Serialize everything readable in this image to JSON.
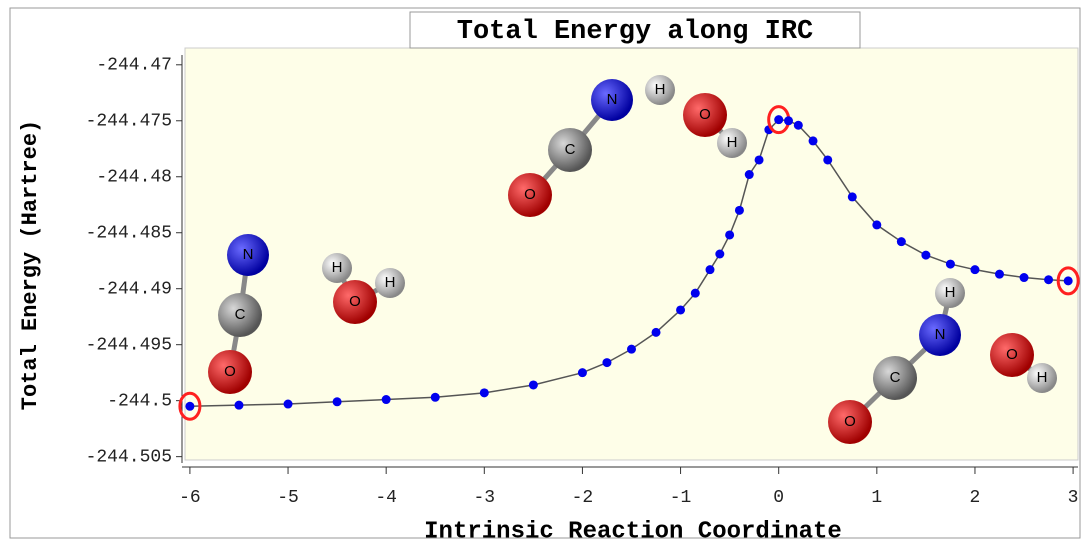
{
  "chart_data": {
    "type": "line",
    "title": "Total Energy along IRC",
    "x_label": "Intrinsic Reaction Coordinate",
    "y_label": "Total Energy (Hartree)",
    "x": [
      -6,
      -5.5,
      -5,
      -4.5,
      -4,
      -3.5,
      -3,
      -2.5,
      -2,
      -1.75,
      -1.5,
      -1.25,
      -1,
      -0.85,
      -0.7,
      -0.6,
      -0.5,
      -0.4,
      -0.3,
      -0.2,
      -0.1,
      0,
      0.1,
      0.2,
      0.35,
      0.5,
      0.75,
      1,
      1.25,
      1.5,
      1.75,
      2,
      2.25,
      2.5,
      2.75,
      2.95
    ],
    "series": [
      {
        "color": "#0000ee",
        "values": [
          -244.5005,
          -244.5004,
          -244.5003,
          -244.5001,
          -244.4999,
          -244.4997,
          -244.4993,
          -244.4986,
          -244.4975,
          -244.4966,
          -244.4954,
          -244.4939,
          -244.4919,
          -244.4904,
          -244.4883,
          -244.4869,
          -244.4852,
          -244.483,
          -244.4798,
          -244.4785,
          -244.4758,
          -244.4749,
          -244.475,
          -244.4754,
          -244.4768,
          -244.4785,
          -244.4818,
          -244.4843,
          -244.4858,
          -244.487,
          -244.4878,
          -244.4883,
          -244.4887,
          -244.489,
          -244.4892,
          -244.4893
        ]
      }
    ],
    "xlim": [
      -6.05,
      3.05
    ],
    "ylim": [
      -244.5053,
      -244.4685
    ],
    "xticks": [
      -6,
      -5,
      -4,
      -3,
      -2,
      -1,
      0,
      1,
      2,
      3
    ],
    "yticks": [
      -244.47,
      -244.475,
      -244.48,
      -244.485,
      -244.49,
      -244.495,
      -244.5,
      -244.505
    ],
    "highlight_color": "#ff2020",
    "molecules": [
      [
        "N",
        "C",
        "O",
        "H",
        "O",
        "H"
      ],
      [
        "N",
        "C",
        "O",
        "H",
        "O",
        "H"
      ],
      [
        "H",
        "N",
        "C",
        "O",
        "O",
        "H"
      ]
    ]
  }
}
